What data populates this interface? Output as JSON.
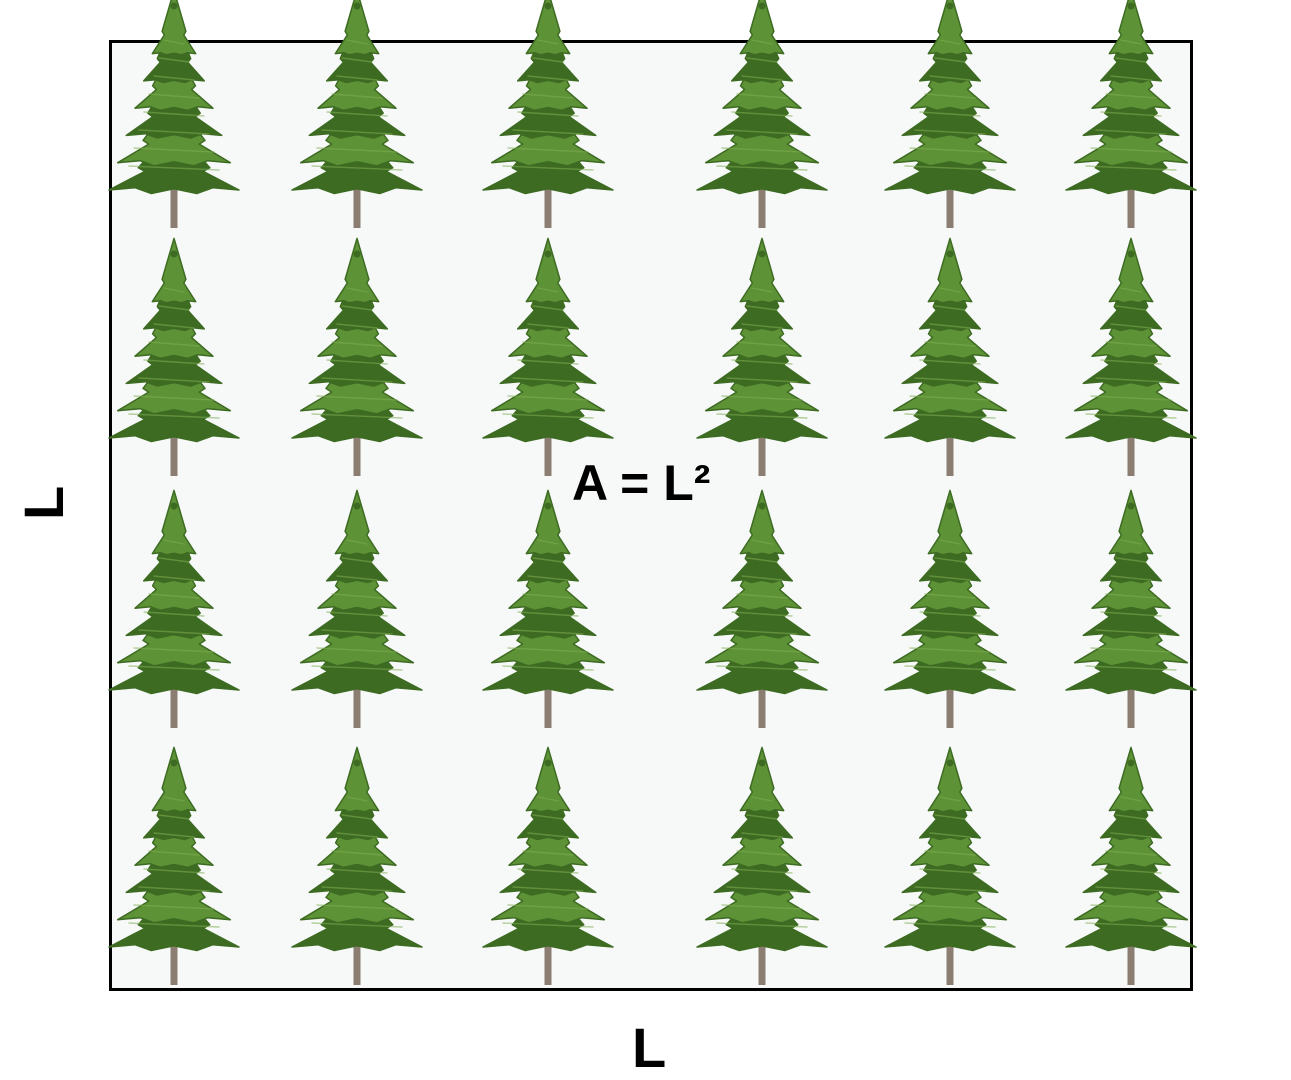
{
  "diagram": {
    "formula": "A = L²",
    "side_label_bottom": "L",
    "side_label_left": "L",
    "trees": {
      "icon": "pine-tree-icon",
      "rows": 4,
      "columns": 6,
      "count": 24
    },
    "colors": {
      "foliage_dark": "#3d6b22",
      "foliage_light": "#5e9236",
      "trunk": "#8b7d72",
      "border": "#000000",
      "fill": "#f7f9f9"
    }
  }
}
